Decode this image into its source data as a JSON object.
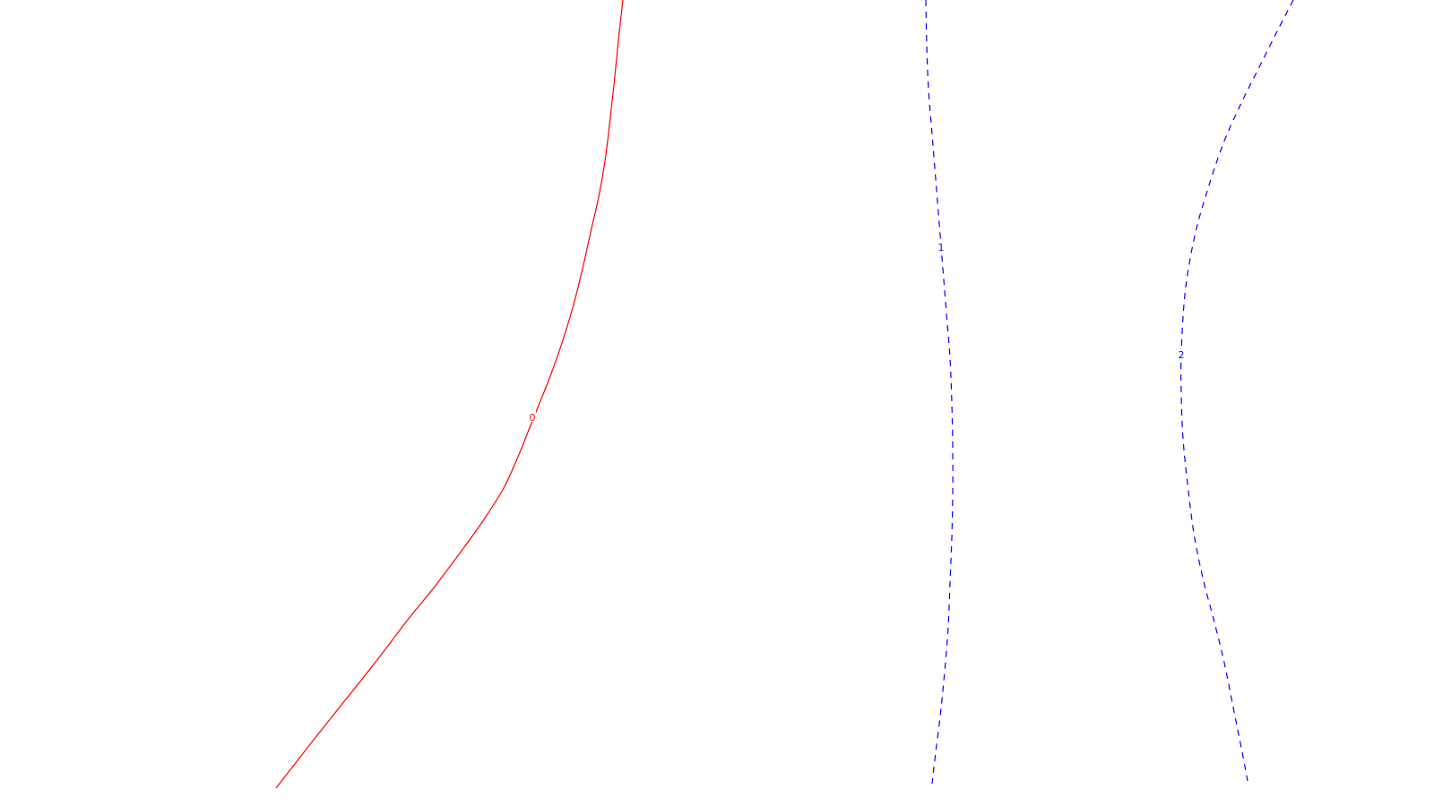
{
  "chart_data": {
    "type": "line",
    "title": "",
    "xlabel": "",
    "ylabel": "",
    "grid": false,
    "legend": "none",
    "series": [
      {
        "label": "0",
        "color": "#ff0000",
        "dashed": false,
        "points": [
          [
            695,
            0
          ],
          [
            690,
            45
          ],
          [
            685,
            95
          ],
          [
            680,
            140
          ],
          [
            675,
            180
          ],
          [
            668,
            220
          ],
          [
            660,
            255
          ],
          [
            650,
            300
          ],
          [
            640,
            340
          ],
          [
            628,
            380
          ],
          [
            614,
            420
          ],
          [
            600,
            455
          ],
          [
            590,
            480
          ],
          [
            578,
            510
          ],
          [
            562,
            545
          ],
          [
            540,
            580
          ],
          [
            515,
            615
          ],
          [
            485,
            655
          ],
          [
            455,
            692
          ],
          [
            420,
            738
          ],
          [
            385,
            782
          ],
          [
            350,
            826
          ],
          [
            308,
            880
          ]
        ],
        "label_at": [
          594,
          466
        ]
      },
      {
        "label": "1",
        "color": "#0000ff",
        "dashed": true,
        "points": [
          [
            1033,
            0
          ],
          [
            1034,
            50
          ],
          [
            1036,
            100
          ],
          [
            1040,
            150
          ],
          [
            1044,
            200
          ],
          [
            1048,
            250
          ],
          [
            1052,
            300
          ],
          [
            1056,
            350
          ],
          [
            1060,
            400
          ],
          [
            1062,
            450
          ],
          [
            1063,
            500
          ],
          [
            1063,
            550
          ],
          [
            1062,
            600
          ],
          [
            1060,
            650
          ],
          [
            1058,
            700
          ],
          [
            1054,
            750
          ],
          [
            1049,
            800
          ],
          [
            1044,
            840
          ],
          [
            1040,
            875
          ]
        ],
        "label_at": [
          1050,
          276
        ]
      },
      {
        "label": "2",
        "color": "#0000ff",
        "dashed": true,
        "points": [
          [
            1443,
            0
          ],
          [
            1425,
            35
          ],
          [
            1405,
            75
          ],
          [
            1385,
            115
          ],
          [
            1365,
            160
          ],
          [
            1348,
            210
          ],
          [
            1335,
            255
          ],
          [
            1326,
            300
          ],
          [
            1321,
            340
          ],
          [
            1318,
            395
          ],
          [
            1318,
            440
          ],
          [
            1320,
            490
          ],
          [
            1325,
            540
          ],
          [
            1332,
            595
          ],
          [
            1342,
            645
          ],
          [
            1355,
            695
          ],
          [
            1366,
            740
          ],
          [
            1376,
            790
          ],
          [
            1385,
            835
          ],
          [
            1392,
            872
          ]
        ],
        "label_at": [
          1318,
          396
        ]
      }
    ]
  }
}
